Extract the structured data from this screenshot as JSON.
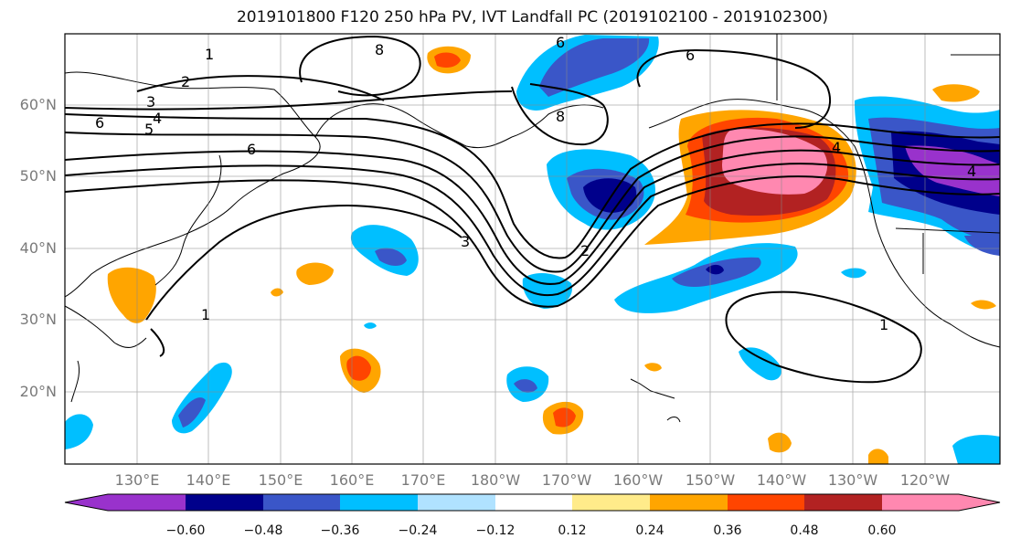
{
  "title": "2019101800 F120 250 hPa PV, IVT Landfall PC (2019102100 - 2019102300)",
  "lat_labels": [
    "60°N",
    "50°N",
    "40°N",
    "30°N",
    "20°N"
  ],
  "lon_labels": [
    "130°E",
    "140°E",
    "150°E",
    "160°E",
    "170°E",
    "180°W",
    "170°W",
    "160°W",
    "150°W",
    "140°W",
    "130°W",
    "120°W"
  ],
  "colorbar": {
    "ticks": [
      "−0.60",
      "−0.48",
      "−0.36",
      "−0.24",
      "−0.12",
      "0.12",
      "0.24",
      "0.36",
      "0.48",
      "0.60"
    ],
    "colors": [
      "#9932CC",
      "#00008B",
      "#3A56C8",
      "#00BFFF",
      "#B0E2FF",
      "#FFFFFF",
      "#FFEB8A",
      "#FFA500",
      "#FF4500",
      "#B22222",
      "#FF88B0"
    ]
  },
  "contour_labels": [
    "1",
    "2",
    "3",
    "4",
    "5",
    "6",
    "6",
    "8",
    "6",
    "8",
    "6",
    "3",
    "2",
    "1",
    "1",
    "4",
    "4"
  ]
}
